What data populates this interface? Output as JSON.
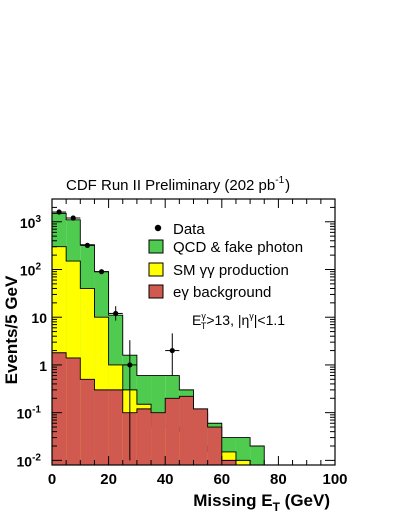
{
  "chart_data": {
    "type": "histogram",
    "title": "CDF Run II Preliminary (202 pb",
    "title_exponent": "-1",
    "title_close": ")",
    "xlabel": "Missing E",
    "xlabel_sub": "T",
    "xlabel_unit": " (GeV)",
    "ylabel": "Events/5 GeV",
    "xlim": [
      0,
      100
    ],
    "ylim": [
      0.008,
      3000
    ],
    "yscale": "log",
    "bin_width": 5,
    "bin_edges": [
      0,
      5,
      10,
      15,
      20,
      25,
      30,
      35,
      40,
      45,
      50,
      55,
      60,
      65,
      70,
      75,
      80,
      85,
      90,
      95,
      100
    ],
    "x_ticks": [
      0,
      20,
      40,
      60,
      80,
      100
    ],
    "x_tick_labels": [
      "0",
      "20",
      "40",
      "60",
      "80",
      "100"
    ],
    "y_tick_labels": [
      {
        "value": 1000,
        "base": "10",
        "exp": "3"
      },
      {
        "value": 100,
        "base": "10",
        "exp": "2"
      },
      {
        "value": 10,
        "base": "10",
        "exp": ""
      },
      {
        "value": 1,
        "base": "1",
        "exp": ""
      },
      {
        "value": 0.1,
        "base": "10",
        "exp": "-1"
      },
      {
        "value": 0.01,
        "base": "10",
        "exp": "-2"
      }
    ],
    "stack": [
      {
        "name": "QCD & fake photon",
        "color": "#4fcc4f",
        "cumulative": [
          1500,
          1100,
          330,
          90,
          11,
          1.6,
          0.6,
          0.6,
          0.6,
          0.3,
          0.1,
          0.06,
          0.03,
          0.03,
          0.02,
          0.008,
          0.008,
          0.008,
          0.008,
          0.008
        ]
      },
      {
        "name": "SM γγ production",
        "color": "#ffff00",
        "cumulative": [
          300,
          150,
          40,
          10,
          1.0,
          0.3,
          0.15,
          0.05,
          0.05,
          0.04,
          0.02,
          0.015,
          0.015,
          0.01,
          0.008,
          0.008,
          0.008,
          0.008,
          0.008,
          0.008
        ]
      },
      {
        "name": "eγ background",
        "color": "#d05a50",
        "cumulative": [
          1.8,
          1.4,
          0.5,
          0.3,
          0.3,
          0.1,
          0.12,
          0.1,
          0.2,
          0.22,
          0.12,
          0.05,
          0.01,
          0.008,
          0.008,
          0.008,
          0.008,
          0.008,
          0.008,
          0.008
        ]
      }
    ],
    "data_points": [
      {
        "x": 2.5,
        "y": 1600,
        "err_low": 40,
        "err_high": 40
      },
      {
        "x": 7.5,
        "y": 1200,
        "err_low": 35,
        "err_high": 35
      },
      {
        "x": 12.5,
        "y": 320,
        "err_low": 18,
        "err_high": 18
      },
      {
        "x": 17.5,
        "y": 90,
        "err_low": 9,
        "err_high": 9
      },
      {
        "x": 22.5,
        "y": 12,
        "err_low": 3.5,
        "err_high": 5
      },
      {
        "x": 27.5,
        "y": 1.0,
        "err_low": 0.99,
        "err_high": 2.3
      },
      {
        "x": 42.5,
        "y": 2.0,
        "err_low": 1.4,
        "err_high": 2.6
      }
    ],
    "legend": {
      "position": "top-right",
      "entries": [
        {
          "label": "Data",
          "marker": "point"
        },
        {
          "label": "QCD & fake photon",
          "color": "#4fcc4f"
        },
        {
          "label": "SM γγ production",
          "color": "#ffff00"
        },
        {
          "label": "eγ background",
          "color": "#d05a50"
        }
      ]
    },
    "annotation": {
      "e": "E",
      "e_sup": "γ",
      "e_sub": "T",
      "mid": ">13, |η",
      "eta_sup": "γ",
      "end": "|<1.1"
    }
  }
}
